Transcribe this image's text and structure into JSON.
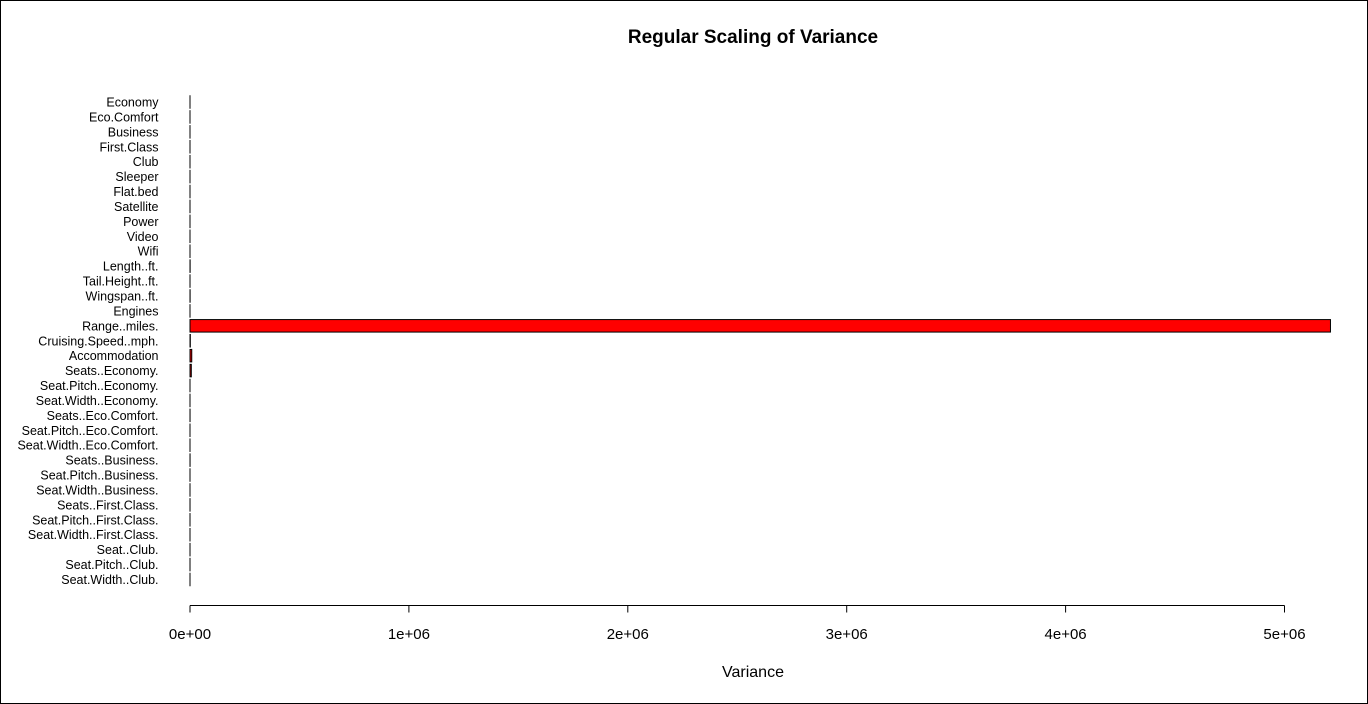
{
  "chart_data": {
    "type": "bar",
    "orientation": "horizontal",
    "title": "Regular Scaling of Variance",
    "xlabel": "Variance",
    "ylabel": "",
    "xlim": [
      0,
      5200000
    ],
    "x_ticks": [
      0,
      1000000,
      2000000,
      3000000,
      4000000,
      5000000
    ],
    "x_tick_labels": [
      "0e+00",
      "1e+06",
      "2e+06",
      "3e+06",
      "4e+06",
      "5e+06"
    ],
    "grid": false,
    "legend": "none",
    "bar_color": "#ff0000",
    "bar_edge_color": "#000000",
    "categories": [
      "Economy",
      "Eco.Comfort",
      "Business",
      "First.Class",
      "Club",
      "Sleeper",
      "Flat.bed",
      "Satellite",
      "Power",
      "Video",
      "Wifi",
      "Length..ft.",
      "Tail.Height..ft.",
      "Wingspan..ft.",
      "Engines",
      "Range..miles.",
      "Cruising.Speed..mph.",
      "Accommodation",
      "Seats..Economy.",
      "Seat.Pitch..Economy.",
      "Seat.Width..Economy.",
      "Seats..Eco.Comfort.",
      "Seat.Pitch..Eco.Comfort.",
      "Seat.Width..Eco.Comfort.",
      "Seats..Business.",
      "Seat.Pitch..Business.",
      "Seat.Width..Business.",
      "Seats..First.Class.",
      "Seat.Pitch..First.Class.",
      "Seat.Width..First.Class.",
      "Seat..Club.",
      "Seat.Pitch..Club.",
      "Seat.Width..Club."
    ],
    "values": [
      0.2,
      0.1,
      0.2,
      0.1,
      0.1,
      0.1,
      0.1,
      0.2,
      0.2,
      0.2,
      0.2,
      600,
      80,
      500,
      0.5,
      5210000,
      1500,
      8000,
      6000,
      1,
      1,
      200,
      1,
      0.5,
      300,
      5,
      2,
      100,
      10,
      3,
      50,
      10,
      3
    ]
  }
}
